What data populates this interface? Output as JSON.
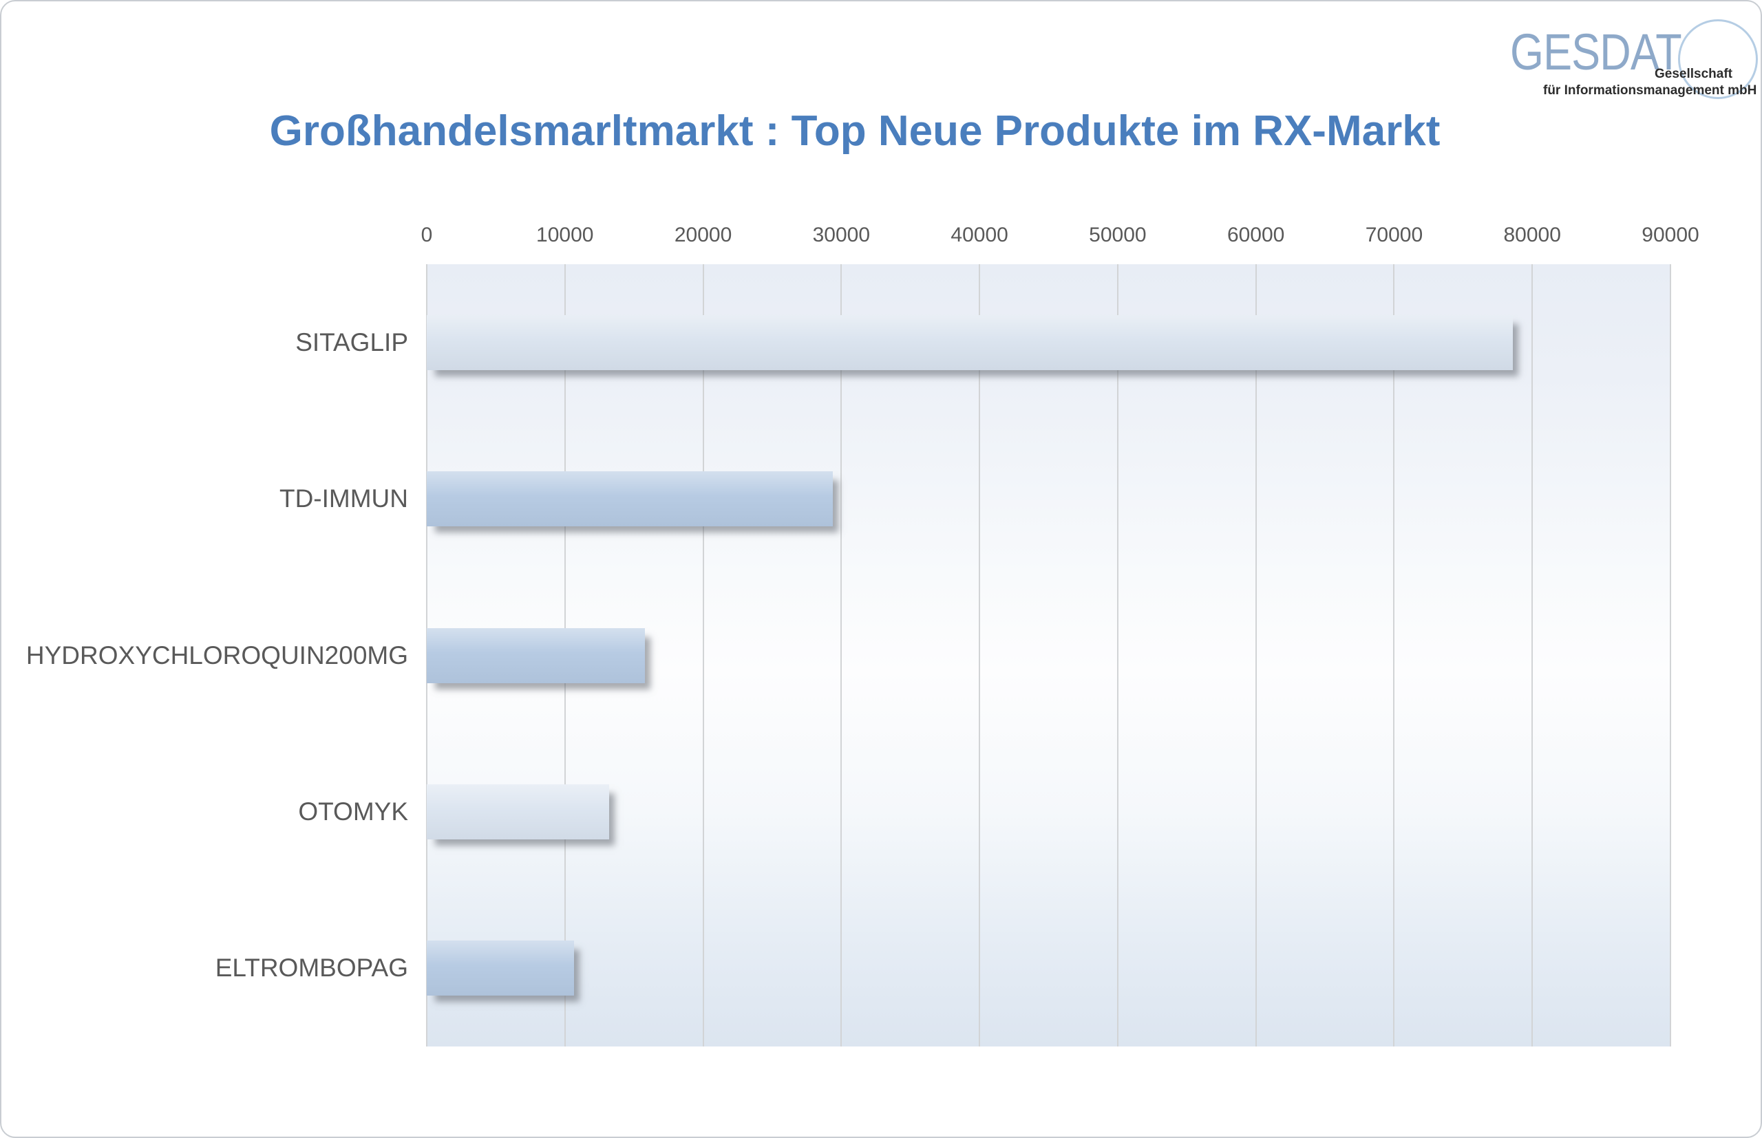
{
  "logo": {
    "brand": "GESDAT",
    "tagline_line1": "Gesellschaft",
    "tagline_line2": "für Informationsmanagement mbH"
  },
  "title": "Großhandelsmarltmarkt : Top Neue Produkte im RX-Markt",
  "colors": {
    "title": "#4a7ebd",
    "logo_brand": "#8ea9c9",
    "logo_circle": "#b5cde4",
    "axis_text": "#595959",
    "gridline": "#d2d4d6",
    "bar_light": "#dbe4ef",
    "bar_medium": "#b7cbe3",
    "plot_bg_top": "#e8edf5",
    "plot_bg_bottom": "#dce5f0"
  },
  "chart_data": {
    "type": "bar",
    "orientation": "horizontal",
    "title": "Großhandelsmarltmarkt : Top Neue Produkte im RX-Markt",
    "categories": [
      "SITAGLIP",
      "TD-IMMUN",
      "HYDROXYCHLOROQUIN200MG",
      "OTOMYK",
      "ELTROMBOPAG"
    ],
    "values": [
      78600,
      29400,
      15800,
      13200,
      10650
    ],
    "point_colors": [
      "#dbe4ef",
      "#b7cbe3",
      "#b7cbe3",
      "#dce5f0",
      "#b7cbe3"
    ],
    "xlabel": "",
    "ylabel": "",
    "xlim": [
      0,
      90000
    ],
    "x_ticks": [
      0,
      10000,
      20000,
      30000,
      40000,
      50000,
      60000,
      70000,
      80000,
      90000
    ],
    "x_tick_labels": [
      "0",
      "10000",
      "20000",
      "30000",
      "40000",
      "50000",
      "60000",
      "70000",
      "80000",
      "90000"
    ],
    "tick_position": "top",
    "grid": true,
    "legend": false
  }
}
